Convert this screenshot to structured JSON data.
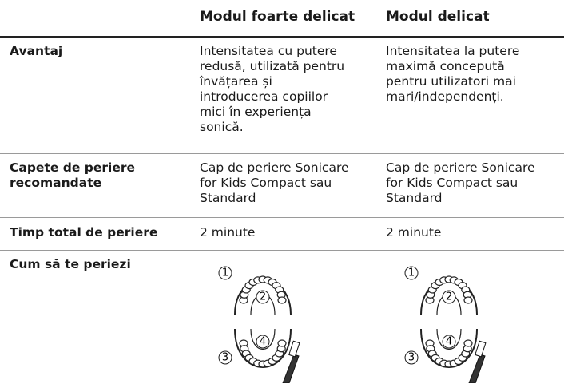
{
  "table": {
    "header": [
      "Modul foarte delicat",
      "Modul delicat"
    ],
    "rows": [
      {
        "label": [
          "Avantaj"
        ],
        "cells": [
          [
            "Intensitatea cu putere",
            "redusă, utilizată pentru",
            "învățarea și",
            "introducerea copiilor",
            "mici în experiența",
            "sonică."
          ],
          [
            "Intensitatea la putere",
            "maximă concepută",
            "pentru utilizatori mai",
            "mari/independenți."
          ]
        ]
      },
      {
        "label": [
          "Capete de periere",
          "recomandate"
        ],
        "cells": [
          [
            "Cap de periere Sonicare",
            "for Kids Compact sau",
            "Standard"
          ],
          [
            "Cap de periere Sonicare",
            "for Kids Compact sau",
            "Standard"
          ]
        ]
      },
      {
        "label": [
          "Timp total de periere"
        ],
        "cells": [
          [
            "2 minute"
          ],
          [
            "2 minute"
          ]
        ]
      },
      {
        "label": [
          "Cum să te periezi"
        ],
        "diagrams": [
          [
            "1",
            "2",
            "3",
            "4"
          ],
          [
            "1",
            "2",
            "3",
            "4"
          ]
        ]
      }
    ]
  }
}
